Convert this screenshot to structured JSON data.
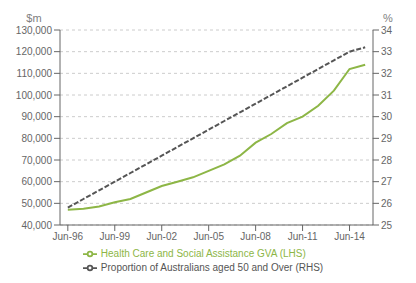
{
  "chart_data": {
    "type": "line",
    "ylabel": "$m",
    "y2label": "%",
    "x": [
      1996,
      1997,
      1998,
      1999,
      2000,
      2001,
      2002,
      2003,
      2004,
      2005,
      2006,
      2007,
      2008,
      2009,
      2010,
      2011,
      2012,
      2013,
      2014,
      2015
    ],
    "series": [
      {
        "name": "Health Care and Social Assistance GVA (LHS)",
        "color": "#8db646",
        "line_style": "solid",
        "axis": "y",
        "values": [
          47000,
          47500,
          48500,
          50500,
          52000,
          55000,
          58000,
          60000,
          62000,
          65000,
          68000,
          72000,
          78000,
          82000,
          87000,
          90000,
          95000,
          102000,
          112000,
          114000
        ]
      },
      {
        "name": "Proportion of Australians aged 50 and Over (RHS)",
        "color": "#555555",
        "line_style": "dashed",
        "axis": "y2",
        "values": [
          25.8,
          26.2,
          26.6,
          27.0,
          27.4,
          27.8,
          28.2,
          28.6,
          29.0,
          29.4,
          29.8,
          30.2,
          30.6,
          31.0,
          31.4,
          31.8,
          32.2,
          32.6,
          33.0,
          33.2
        ]
      }
    ],
    "xlim": [
      1995.5,
      2015.5
    ],
    "xticks": [
      {
        "value": 1996,
        "label": "Jun-96"
      },
      {
        "value": 1999,
        "label": "Jun-99"
      },
      {
        "value": 2002,
        "label": "Jun-02"
      },
      {
        "value": 2005,
        "label": "Jun-05"
      },
      {
        "value": 2008,
        "label": "Jun-08"
      },
      {
        "value": 2011,
        "label": "Jun-11"
      },
      {
        "value": 2014,
        "label": "Jun-14"
      }
    ],
    "ylim": [
      40000,
      130000
    ],
    "yticks": [
      {
        "value": 40000,
        "label": "40,000"
      },
      {
        "value": 50000,
        "label": "50,000"
      },
      {
        "value": 60000,
        "label": "60,000"
      },
      {
        "value": 70000,
        "label": "70,000"
      },
      {
        "value": 80000,
        "label": "80,000"
      },
      {
        "value": 90000,
        "label": "90,000"
      },
      {
        "value": 100000,
        "label": "100,000"
      },
      {
        "value": 110000,
        "label": "110,000"
      },
      {
        "value": 120000,
        "label": "120,000"
      },
      {
        "value": 130000,
        "label": "130,000"
      }
    ],
    "y2lim": [
      25,
      34
    ],
    "y2ticks": [
      25,
      26,
      27,
      28,
      29,
      30,
      31,
      32,
      33,
      34
    ],
    "grid": true,
    "legend": "bottom"
  }
}
